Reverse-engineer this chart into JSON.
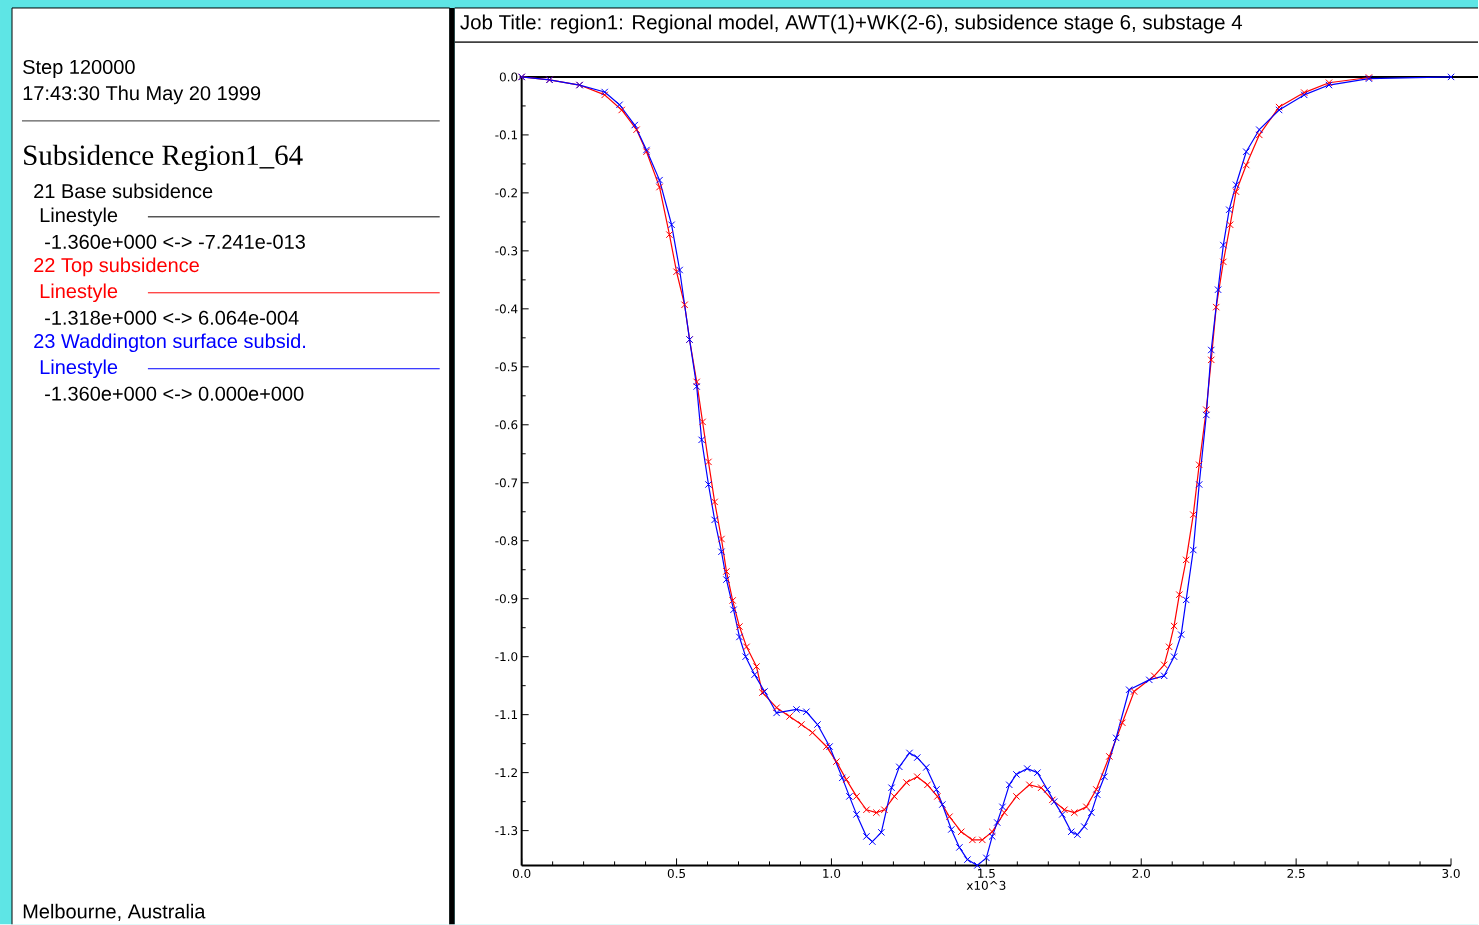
{
  "chart_data": {
    "type": "line",
    "title": "Job Title: region1: Regional model, AWT(1)+WK(2-6), subsidence stage 6, substage 4",
    "xlabel": "x10^3",
    "legend_title": "Subsidence Region1_64",
    "legend": "left",
    "marker": "cross",
    "line_style": "solid",
    "annotations": [
      "Step 120000",
      "17:43:30 Thu May 20 1999",
      "Linestyle",
      "-1.360e+000 <-> -7.241e-013",
      "Linestyle",
      "-1.318e+000 <->  6.064e-004",
      "Linestyle",
      "-1.360e+000 <->  0.000e+000",
      "Melbourne,  Australia"
    ],
    "xlim": [
      0,
      3.0
    ],
    "ylim": [
      -1.36,
      0
    ],
    "xticks": [
      {
        "value": 0,
        "label": "0.0"
      },
      {
        "value": 0.5,
        "label": "0.5"
      },
      {
        "value": 1.0,
        "label": "1.0"
      },
      {
        "value": 1.5,
        "label": "1.5"
      },
      {
        "value": 2.0,
        "label": "2.0"
      },
      {
        "value": 2.5,
        "label": "2.5"
      },
      {
        "value": 3.0,
        "label": "3.0"
      }
    ],
    "yticks": [
      {
        "value": 0,
        "label": "0.0"
      },
      {
        "value": -0.1,
        "label": "-0.1"
      },
      {
        "value": -0.2,
        "label": "-0.2"
      },
      {
        "value": -0.3,
        "label": "-0.3"
      },
      {
        "value": -0.4,
        "label": "-0.4"
      },
      {
        "value": -0.5,
        "label": "-0.5"
      },
      {
        "value": -0.6,
        "label": "-0.6"
      },
      {
        "value": -0.7,
        "label": "-0.7"
      },
      {
        "value": -0.8,
        "label": "-0.8"
      },
      {
        "value": -0.9,
        "label": "-0.9"
      },
      {
        "value": -1.0,
        "label": "-1.0"
      },
      {
        "value": -1.1,
        "label": "-1.1"
      },
      {
        "value": -1.2,
        "label": "-1.2"
      },
      {
        "value": -1.3,
        "label": "-1.3"
      }
    ],
    "x": [
      0,
      0.09,
      0.187,
      0.268,
      0.316,
      0.365,
      0.403,
      0.445,
      0.484,
      0.51,
      0.542,
      0.565,
      0.581,
      0.603,
      0.623,
      0.645,
      0.661,
      0.684,
      0.703,
      0.723,
      0.752,
      0.784,
      0.823,
      0.887,
      0.919,
      0.955,
      0.994,
      1.035,
      1.058,
      1.081,
      1.113,
      1.132,
      1.161,
      1.194,
      1.219,
      1.252,
      1.277,
      1.306,
      1.339,
      1.358,
      1.387,
      1.413,
      1.439,
      1.471,
      1.5,
      1.519,
      1.535,
      1.552,
      1.574,
      1.597,
      1.632,
      1.665,
      1.697,
      1.719,
      1.745,
      1.774,
      1.794,
      1.816,
      1.839,
      1.858,
      1.881,
      1.919,
      1.961,
      2.026,
      2.074,
      2.106,
      2.129,
      2.145,
      2.168,
      2.187,
      2.21,
      2.226,
      2.248,
      2.265,
      2.284,
      2.306,
      2.339,
      2.381,
      2.445,
      2.526,
      2.606,
      2.735,
      3.0
    ],
    "series": [
      {
        "name": "21 Base subsidence",
        "color": "#000000",
        "values": [
          null,
          null,
          null,
          null,
          null,
          null,
          null,
          null,
          null,
          null,
          null,
          null,
          null,
          null,
          null,
          null,
          null,
          null,
          null,
          null,
          null,
          null,
          null,
          null,
          null,
          null,
          null,
          null,
          null,
          null,
          null,
          null,
          null,
          null,
          null,
          null,
          null,
          null,
          null,
          null,
          null,
          null,
          null,
          null,
          null,
          null,
          null,
          null,
          null,
          null,
          null,
          null,
          null,
          null,
          null,
          null,
          null,
          null,
          null,
          null,
          null,
          null,
          null,
          null,
          null,
          null,
          null,
          null,
          null,
          null,
          null,
          null,
          null,
          null,
          null,
          null,
          null,
          null,
          null,
          null,
          null,
          null,
          null
        ]
      },
      {
        "name": "22 Top subsidence",
        "color": "#ff0000",
        "x": [
          0,
          0.09,
          0.187,
          0.268,
          0.323,
          0.371,
          0.403,
          0.445,
          0.477,
          0.5,
          0.526,
          0.542,
          0.565,
          0.584,
          0.603,
          0.623,
          0.645,
          0.661,
          0.681,
          0.703,
          0.726,
          0.758,
          0.777,
          0.823,
          0.865,
          0.903,
          0.939,
          0.984,
          1.016,
          1.048,
          1.081,
          1.113,
          1.145,
          1.171,
          1.203,
          1.242,
          1.277,
          1.31,
          1.342,
          1.381,
          1.419,
          1.455,
          1.487,
          1.519,
          1.558,
          1.597,
          1.639,
          1.677,
          1.713,
          1.752,
          1.784,
          1.823,
          1.855,
          1.897,
          1.939,
          1.977,
          2.042,
          2.074,
          2.09,
          2.106,
          2.123,
          2.145,
          2.168,
          2.187,
          2.21,
          2.226,
          2.242,
          2.265,
          2.287,
          2.306,
          2.339,
          2.381,
          2.445,
          2.526,
          2.606,
          2.735
        ],
        "values": [
          0,
          -0.005,
          -0.014,
          -0.031,
          -0.057,
          -0.091,
          -0.129,
          -0.19,
          -0.272,
          -0.336,
          -0.393,
          -0.453,
          -0.526,
          -0.595,
          -0.664,
          -0.733,
          -0.797,
          -0.853,
          -0.903,
          -0.948,
          -0.983,
          -1.017,
          -1.062,
          -1.088,
          -1.103,
          -1.117,
          -1.131,
          -1.155,
          -1.181,
          -1.212,
          -1.241,
          -1.264,
          -1.269,
          -1.264,
          -1.241,
          -1.217,
          -1.207,
          -1.221,
          -1.241,
          -1.276,
          -1.302,
          -1.316,
          -1.316,
          -1.302,
          -1.269,
          -1.241,
          -1.221,
          -1.226,
          -1.247,
          -1.264,
          -1.269,
          -1.259,
          -1.229,
          -1.172,
          -1.114,
          -1.06,
          -1.033,
          -1.014,
          -0.983,
          -0.947,
          -0.893,
          -0.833,
          -0.755,
          -0.669,
          -0.574,
          -0.488,
          -0.397,
          -0.319,
          -0.255,
          -0.198,
          -0.152,
          -0.1,
          -0.052,
          -0.027,
          -0.01,
          -0.001
        ]
      },
      {
        "name": "23 Waddington surface subsid.",
        "color": "#0000ff",
        "values": [
          0,
          -0.005,
          -0.014,
          -0.026,
          -0.048,
          -0.083,
          -0.126,
          -0.178,
          -0.255,
          -0.333,
          -0.453,
          -0.534,
          -0.626,
          -0.703,
          -0.764,
          -0.819,
          -0.867,
          -0.919,
          -0.966,
          -1.0,
          -1.031,
          -1.06,
          -1.097,
          -1.091,
          -1.095,
          -1.117,
          -1.155,
          -1.209,
          -1.241,
          -1.272,
          -1.31,
          -1.319,
          -1.303,
          -1.226,
          -1.19,
          -1.166,
          -1.174,
          -1.191,
          -1.229,
          -1.255,
          -1.298,
          -1.329,
          -1.35,
          -1.36,
          -1.347,
          -1.31,
          -1.286,
          -1.259,
          -1.221,
          -1.203,
          -1.193,
          -1.2,
          -1.229,
          -1.25,
          -1.272,
          -1.302,
          -1.307,
          -1.293,
          -1.269,
          -1.238,
          -1.207,
          -1.14,
          -1.057,
          -1.04,
          -1.033,
          -1.0,
          -0.962,
          -0.902,
          -0.816,
          -0.703,
          -0.583,
          -0.471,
          -0.367,
          -0.29,
          -0.229,
          -0.186,
          -0.129,
          -0.091,
          -0.057,
          -0.031,
          -0.014,
          -0.003,
          0
        ]
      }
    ]
  }
}
